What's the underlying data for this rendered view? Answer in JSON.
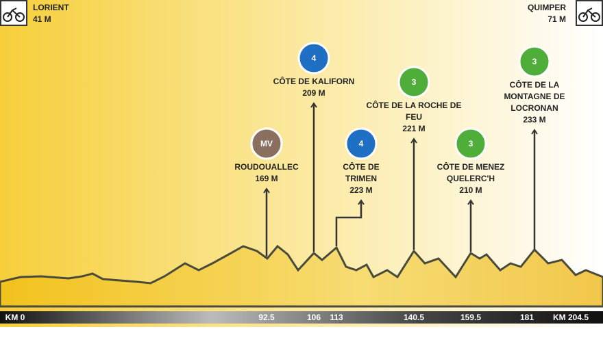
{
  "start": {
    "name": "LORIENT",
    "altitude": "41 M"
  },
  "finish": {
    "name": "QUIMPER",
    "altitude": "71 M"
  },
  "climbs": [
    {
      "badge": "MV",
      "name_lines": [
        "ROUDOUALLEC"
      ],
      "altitude": "169 M"
    },
    {
      "badge": "4",
      "name_lines": [
        "CÔTE DE KALIFORN"
      ],
      "altitude": "209 M"
    },
    {
      "badge": "4",
      "name_lines": [
        "CÔTE DE",
        "TRIMEN"
      ],
      "altitude": "223 M"
    },
    {
      "badge": "3",
      "name_lines": [
        "CÔTE DE LA ROCHE DE",
        "FEU"
      ],
      "altitude": "221 M"
    },
    {
      "badge": "3",
      "name_lines": [
        "CÔTE DE MENEZ",
        "QUELERC'H"
      ],
      "altitude": "210 M"
    },
    {
      "badge": "3",
      "name_lines": [
        "CÔTE DE LA",
        "MONTAGNE DE",
        "LOCRONAN"
      ],
      "altitude": "233 M"
    }
  ],
  "km_markers": [
    "KM 0",
    "92.5",
    "106",
    "113",
    "140.5",
    "159.5",
    "181",
    "KM 204.5"
  ]
}
